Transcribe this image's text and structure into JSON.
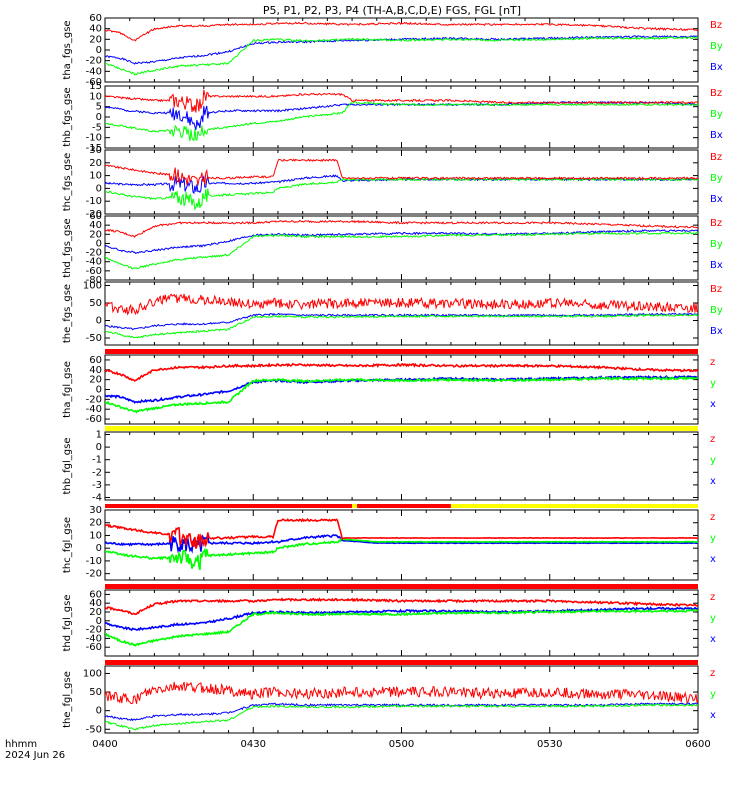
{
  "title": "P5, P1, P2, P3, P4 (TH-A,B,C,D,E) FGS, FGL [nT]",
  "footer": {
    "label1": "hhmm",
    "label2": "2024 Jun 26"
  },
  "x_ticks": [
    {
      "t": 0,
      "label": "0400"
    },
    {
      "t": 30,
      "label": "0430"
    },
    {
      "t": 60,
      "label": "0500"
    },
    {
      "t": 90,
      "label": "0530"
    },
    {
      "t": 120,
      "label": "0600"
    }
  ],
  "colors": {
    "x": "#0000ff",
    "y": "#00ff00",
    "z": "#ff0000",
    "bar_red": "#ff0000",
    "bar_yellow": "#ffff00",
    "axis": "#000000"
  },
  "chart_data": [
    {
      "type": "line",
      "ylabel": "tha_fgs_gse",
      "ylim": [
        -60,
        60
      ],
      "yticks": [
        -60,
        -40,
        -20,
        0,
        20,
        40,
        60
      ],
      "legend": [
        "Bz",
        "By",
        "Bx"
      ],
      "mode": "fgs",
      "seed": 1,
      "x": [
        0,
        3,
        6,
        10,
        15,
        20,
        25,
        30,
        35,
        40,
        50,
        60,
        70,
        80,
        90,
        100,
        110,
        120
      ],
      "series": [
        {
          "name": "Bx",
          "values": [
            -12,
            -15,
            -25,
            -22,
            -15,
            -10,
            -3,
            12,
            15,
            15,
            18,
            20,
            22,
            20,
            22,
            24,
            25,
            25
          ]
        },
        {
          "name": "By",
          "values": [
            -25,
            -35,
            -45,
            -38,
            -30,
            -28,
            -25,
            18,
            20,
            17,
            20,
            18,
            20,
            18,
            20,
            22,
            22,
            23
          ]
        },
        {
          "name": "Bz",
          "values": [
            38,
            32,
            18,
            40,
            45,
            45,
            48,
            48,
            50,
            50,
            48,
            50,
            48,
            48,
            48,
            45,
            40,
            38
          ]
        }
      ]
    },
    {
      "type": "line",
      "ylabel": "thb_fgs_gse",
      "ylim": [
        -15,
        15
      ],
      "yticks": [
        -15,
        -10,
        -5,
        0,
        5,
        10,
        15
      ],
      "legend": [
        "Bz",
        "By",
        "Bx"
      ],
      "mode": "fgs",
      "seed": 2,
      "x": [
        0,
        5,
        10,
        15,
        19,
        20,
        25,
        30,
        35,
        40,
        48,
        50,
        60,
        70,
        80,
        90,
        100,
        110,
        120
      ],
      "series": [
        {
          "name": "Bx",
          "values": [
            5,
            3,
            2,
            2,
            -5,
            2,
            3,
            3,
            3,
            4,
            6,
            6,
            6,
            6,
            6,
            7,
            7,
            7,
            6
          ]
        },
        {
          "name": "By",
          "values": [
            -3,
            -5,
            -7,
            -6,
            -10,
            -6,
            -5,
            -3,
            -2,
            0,
            2,
            7,
            6,
            6,
            6,
            6,
            6,
            6,
            6
          ]
        },
        {
          "name": "Bz",
          "values": [
            10,
            9,
            8,
            8,
            5,
            10,
            10,
            10,
            10,
            11,
            11,
            8,
            8,
            8,
            7,
            7,
            7,
            7,
            7
          ]
        }
      ]
    },
    {
      "type": "line",
      "ylabel": "thc_fgs_gse",
      "ylim": [
        -20,
        30
      ],
      "yticks": [
        -20,
        -10,
        0,
        10,
        20,
        30
      ],
      "legend": [
        "Bz",
        "By",
        "Bx"
      ],
      "mode": "fgs",
      "seed": 3,
      "x": [
        0,
        5,
        10,
        15,
        19,
        20,
        25,
        30,
        34,
        35,
        40,
        47,
        48,
        60,
        80,
        100,
        120
      ],
      "series": [
        {
          "name": "Bx",
          "values": [
            4,
            3,
            3,
            4,
            0,
            4,
            4,
            4,
            5,
            5,
            8,
            10,
            6,
            7,
            7,
            7,
            7
          ]
        },
        {
          "name": "By",
          "values": [
            -2,
            -6,
            -8,
            -7,
            -12,
            -6,
            -5,
            -4,
            -3,
            0,
            3,
            5,
            7,
            7,
            7,
            7,
            7
          ]
        },
        {
          "name": "Bz",
          "values": [
            18,
            15,
            12,
            10,
            5,
            8,
            8,
            9,
            9,
            22,
            22,
            22,
            8,
            8,
            8,
            8,
            8
          ]
        }
      ]
    },
    {
      "type": "line",
      "ylabel": "thd_fgs_gse",
      "ylim": [
        -80,
        60
      ],
      "yticks": [
        -80,
        -60,
        -40,
        -20,
        0,
        20,
        40,
        60
      ],
      "legend": [
        "Bz",
        "By",
        "Bx"
      ],
      "mode": "fgs",
      "seed": 4,
      "x": [
        0,
        3,
        6,
        10,
        15,
        20,
        25,
        30,
        35,
        40,
        50,
        60,
        70,
        80,
        90,
        100,
        110,
        120
      ],
      "series": [
        {
          "name": "Bx",
          "values": [
            -5,
            -15,
            -20,
            -15,
            -8,
            -5,
            5,
            18,
            20,
            18,
            20,
            22,
            22,
            20,
            22,
            25,
            28,
            28
          ]
        },
        {
          "name": "By",
          "values": [
            -30,
            -45,
            -55,
            -45,
            -35,
            -30,
            -25,
            15,
            18,
            15,
            15,
            15,
            18,
            18,
            20,
            22,
            22,
            23
          ]
        },
        {
          "name": "Bz",
          "values": [
            30,
            25,
            15,
            38,
            45,
            45,
            45,
            45,
            48,
            48,
            48,
            45,
            45,
            45,
            45,
            42,
            38,
            35
          ]
        }
      ]
    },
    {
      "type": "line",
      "ylabel": "the_fgs_gse",
      "ylim": [
        -70,
        110
      ],
      "yticks": [
        -50,
        0,
        50,
        100
      ],
      "legend": [
        "Bz",
        "By",
        "Bx"
      ],
      "mode": "the",
      "seed": 5,
      "x": [
        0,
        3,
        6,
        10,
        15,
        20,
        25,
        30,
        35,
        40,
        50,
        60,
        70,
        80,
        90,
        100,
        110,
        120
      ],
      "series": [
        {
          "name": "Bx",
          "values": [
            -15,
            -20,
            -25,
            -15,
            -10,
            -10,
            -5,
            15,
            18,
            15,
            15,
            15,
            15,
            15,
            15,
            15,
            18,
            18
          ]
        },
        {
          "name": "By",
          "values": [
            -30,
            -40,
            -50,
            -40,
            -35,
            -30,
            -25,
            10,
            12,
            10,
            10,
            12,
            12,
            12,
            12,
            12,
            15,
            15
          ]
        },
        {
          "name": "Bz",
          "values": [
            40,
            35,
            30,
            55,
            65,
            60,
            55,
            45,
            50,
            45,
            50,
            50,
            50,
            45,
            50,
            45,
            40,
            35
          ]
        }
      ]
    },
    {
      "type": "line",
      "ylabel": "tha_fgl_gse",
      "ylim": [
        -70,
        70
      ],
      "yticks": [
        -60,
        -40,
        -20,
        0,
        20,
        40,
        60
      ],
      "legend": [
        "z",
        "y",
        "x"
      ],
      "mode": "fgl",
      "seed": 6,
      "topbar": "red",
      "x": [
        0,
        3,
        6,
        10,
        15,
        20,
        25,
        30,
        35,
        40,
        50,
        60,
        70,
        80,
        90,
        100,
        110,
        120
      ],
      "series": [
        {
          "name": "x",
          "values": [
            -12,
            -15,
            -25,
            -22,
            -15,
            -10,
            -3,
            15,
            18,
            15,
            18,
            20,
            22,
            20,
            22,
            24,
            25,
            25
          ]
        },
        {
          "name": "y",
          "values": [
            -25,
            -35,
            -45,
            -38,
            -30,
            -28,
            -25,
            18,
            20,
            17,
            20,
            18,
            20,
            18,
            20,
            22,
            22,
            23
          ]
        },
        {
          "name": "z",
          "values": [
            38,
            32,
            18,
            40,
            45,
            45,
            48,
            48,
            50,
            50,
            48,
            50,
            48,
            48,
            48,
            45,
            40,
            38
          ]
        }
      ]
    },
    {
      "type": "line",
      "ylabel": "thb_fgl_gse",
      "ylim": [
        -4.2,
        1.2
      ],
      "yticks": [
        -4,
        -3,
        -2,
        -1,
        0,
        1
      ],
      "legend": [
        "z",
        "y",
        "x"
      ],
      "mode": "empty",
      "seed": 7,
      "topbar": "yellow",
      "x": [],
      "series": []
    },
    {
      "type": "line",
      "ylabel": "thc_fgl_gse",
      "ylim": [
        -25,
        30
      ],
      "yticks": [
        -20,
        -10,
        0,
        10,
        20,
        30
      ],
      "legend": [
        "z",
        "y",
        "x"
      ],
      "mode": "fgl",
      "seed": 8,
      "topbar": "mixed",
      "x": [
        0,
        5,
        10,
        15,
        19,
        20,
        25,
        30,
        34,
        35,
        40,
        47,
        48,
        55,
        120
      ],
      "series": [
        {
          "name": "x",
          "values": [
            4,
            3,
            3,
            4,
            0,
            4,
            4,
            4,
            5,
            5,
            8,
            10,
            6,
            4,
            4
          ]
        },
        {
          "name": "y",
          "values": [
            -2,
            -6,
            -8,
            -7,
            -12,
            -6,
            -5,
            -4,
            -3,
            0,
            3,
            5,
            7,
            5,
            5
          ]
        },
        {
          "name": "z",
          "values": [
            18,
            15,
            12,
            10,
            5,
            8,
            8,
            9,
            9,
            22,
            22,
            22,
            8,
            8,
            8
          ]
        }
      ]
    },
    {
      "type": "line",
      "ylabel": "thd_fgl_gse",
      "ylim": [
        -80,
        70
      ],
      "yticks": [
        -60,
        -40,
        -20,
        0,
        20,
        40,
        60
      ],
      "legend": [
        "z",
        "y",
        "x"
      ],
      "mode": "fgl",
      "seed": 9,
      "topbar": "red",
      "x": [
        0,
        3,
        6,
        10,
        15,
        20,
        25,
        30,
        35,
        40,
        50,
        60,
        70,
        80,
        90,
        100,
        110,
        120
      ],
      "series": [
        {
          "name": "x",
          "values": [
            -5,
            -15,
            -20,
            -15,
            -8,
            -5,
            5,
            18,
            20,
            18,
            20,
            22,
            22,
            20,
            22,
            25,
            28,
            28
          ]
        },
        {
          "name": "y",
          "values": [
            -30,
            -45,
            -55,
            -45,
            -35,
            -30,
            -25,
            15,
            18,
            15,
            15,
            15,
            18,
            18,
            20,
            22,
            22,
            23
          ]
        },
        {
          "name": "z",
          "values": [
            30,
            25,
            15,
            38,
            45,
            45,
            45,
            45,
            48,
            48,
            48,
            45,
            45,
            45,
            45,
            42,
            38,
            35
          ]
        }
      ]
    },
    {
      "type": "line",
      "ylabel": "the_fgl_gse",
      "ylim": [
        -60,
        120
      ],
      "yticks": [
        -50,
        0,
        50,
        100
      ],
      "legend": [
        "z",
        "y",
        "x"
      ],
      "mode": "the",
      "seed": 10,
      "topbar": "red",
      "x": [
        0,
        3,
        6,
        10,
        15,
        20,
        25,
        30,
        35,
        40,
        50,
        60,
        70,
        80,
        90,
        100,
        110,
        120
      ],
      "series": [
        {
          "name": "x",
          "values": [
            -15,
            -20,
            -25,
            -15,
            -10,
            -10,
            -5,
            15,
            18,
            15,
            15,
            15,
            15,
            15,
            15,
            15,
            18,
            18
          ]
        },
        {
          "name": "y",
          "values": [
            -30,
            -40,
            -50,
            -40,
            -35,
            -30,
            -25,
            10,
            12,
            10,
            10,
            12,
            12,
            12,
            12,
            12,
            15,
            15
          ]
        },
        {
          "name": "z",
          "values": [
            40,
            35,
            30,
            55,
            65,
            60,
            55,
            45,
            50,
            45,
            50,
            50,
            50,
            45,
            50,
            45,
            40,
            35
          ]
        }
      ]
    }
  ]
}
